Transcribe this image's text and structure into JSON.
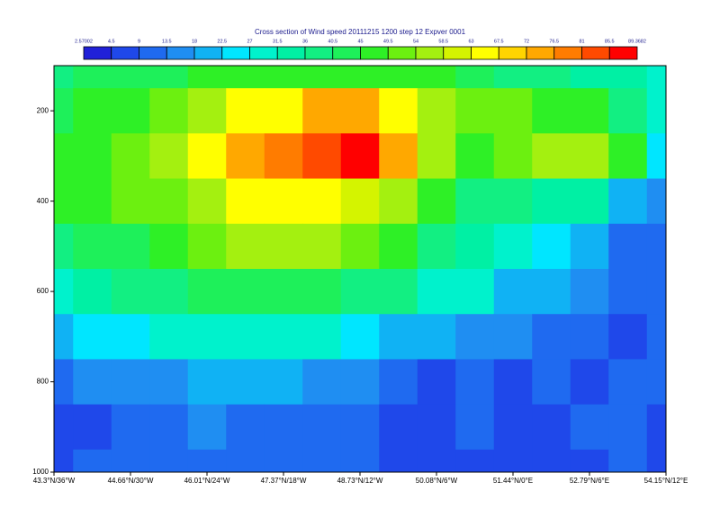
{
  "chart_data": {
    "type": "contour",
    "title": "Cross section of Wind speed 20111215 1200 step 12 Expver 0001",
    "levels": [
      2.57002,
      4.5,
      9,
      13.5,
      18,
      22.5,
      27,
      31.5,
      36,
      40.5,
      45,
      49.5,
      54,
      58.5,
      63,
      67.5,
      72,
      76.5,
      81,
      85.5,
      89.3682
    ],
    "colors": [
      "#2020d8",
      "#1f48ea",
      "#1f6af0",
      "#1f8ef2",
      "#10b2f4",
      "#00e6ff",
      "#00f2cc",
      "#00f0a4",
      "#12ef82",
      "#1ef05a",
      "#2ef026",
      "#6cf010",
      "#a4f010",
      "#d4f400",
      "#ffff00",
      "#ffd400",
      "#ffa800",
      "#ff7c00",
      "#ff4a00",
      "#ff0000"
    ],
    "x": [
      -36,
      -33,
      -30,
      -27,
      -24,
      -21,
      -18,
      -15,
      -12,
      -9,
      -6,
      -3,
      0,
      3,
      6,
      9,
      12
    ],
    "y": [
      100,
      200,
      300,
      400,
      500,
      600,
      700,
      800,
      900,
      1000
    ],
    "z": [
      [
        40,
        42,
        42,
        44,
        45,
        46,
        48,
        48,
        47,
        46,
        45,
        44,
        40,
        38,
        35,
        32,
        28
      ],
      [
        42,
        45,
        48,
        52,
        55,
        63,
        65,
        72,
        72,
        65,
        55,
        52,
        50,
        48,
        45,
        40,
        30
      ],
      [
        45,
        48,
        52,
        58,
        63,
        72,
        78,
        85,
        88,
        76,
        56,
        45,
        52,
        58,
        54,
        48,
        25
      ],
      [
        45,
        46,
        50,
        53,
        58,
        63,
        66,
        65,
        60,
        54,
        45,
        40,
        36,
        35,
        32,
        20,
        14
      ],
      [
        40,
        42,
        44,
        46,
        50,
        54,
        58,
        56,
        50,
        46,
        40,
        34,
        30,
        26,
        20,
        12,
        12
      ],
      [
        28,
        32,
        36,
        40,
        42,
        44,
        44,
        42,
        40,
        36,
        31,
        27,
        22,
        18,
        14,
        10,
        10
      ],
      [
        22,
        24,
        26,
        28,
        30,
        31,
        30,
        28,
        25,
        22,
        18,
        16,
        14,
        12,
        13,
        8,
        9
      ],
      [
        12,
        14,
        16,
        17,
        20,
        18,
        18,
        16,
        14,
        12,
        8,
        10,
        8,
        10,
        8,
        10,
        9
      ],
      [
        6,
        8,
        12,
        12,
        14,
        10,
        12,
        11,
        10,
        6,
        7,
        11,
        7,
        8,
        9,
        13,
        8
      ],
      [
        8,
        9,
        10,
        10,
        11,
        10,
        11,
        10,
        9,
        8,
        7,
        8,
        5,
        8,
        8,
        9,
        8
      ]
    ],
    "xlim": [
      -36,
      12
    ],
    "xticks": [
      {
        "value": -36,
        "label": "43.3°N/36°W"
      },
      {
        "value": -30,
        "label": "44.66°N/30°W"
      },
      {
        "value": -24,
        "label": "46.01°N/24°W"
      },
      {
        "value": -18,
        "label": "47.37°N/18°W"
      },
      {
        "value": -12,
        "label": "48.73°N/12°W"
      },
      {
        "value": -6,
        "label": "50.08°N/6°W"
      },
      {
        "value": 0,
        "label": "51.44°N/0°E"
      },
      {
        "value": 6,
        "label": "52.79°N/6°E"
      },
      {
        "value": 12,
        "label": "54.15°N/12°E"
      }
    ],
    "ylim": [
      100,
      1000
    ],
    "yticks": [
      200,
      400,
      600,
      800,
      1000
    ],
    "y_reversed": true
  }
}
